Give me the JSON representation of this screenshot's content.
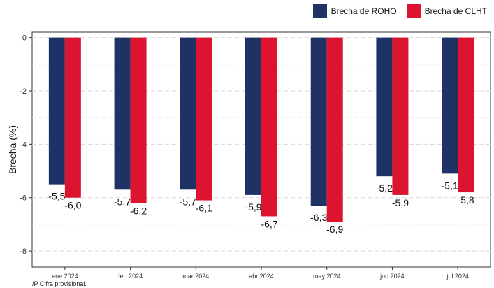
{
  "chart_data": {
    "type": "bar",
    "categories": [
      "ene 2024",
      "feb 2024",
      "mar 2024",
      "abr 2024",
      "may 2024",
      "jun 2024",
      "jul 2024"
    ],
    "series": [
      {
        "name": "Brecha de ROHO",
        "color": "#1f3266",
        "values": [
          -5.5,
          -5.7,
          -5.7,
          -5.9,
          -6.3,
          -5.2,
          -5.1
        ],
        "labels": [
          "-5,5",
          "-5,7",
          "-5,7",
          "-5,9",
          "-6,3",
          "-5,2",
          "-5,1"
        ]
      },
      {
        "name": "Brecha de CLHT",
        "color": "#dc1430",
        "values": [
          -6.0,
          -6.2,
          -6.1,
          -6.7,
          -6.9,
          -5.9,
          -5.8
        ],
        "labels": [
          "-6,0",
          "-6,2",
          "-6,1",
          "-6,7",
          "-6,9",
          "-5,9",
          "-5,8"
        ]
      }
    ],
    "ylabel": "Brecha (%)",
    "xlabel": "",
    "ylim": [
      -8.6,
      0.2
    ],
    "yticks": [
      0,
      -2,
      -4,
      -6,
      -8
    ],
    "ytick_labels": [
      "0",
      "-2",
      "-4",
      "-6",
      "-8"
    ],
    "grid": true,
    "legend_position": "top-right"
  },
  "footnote": "/P Cifra provisional."
}
